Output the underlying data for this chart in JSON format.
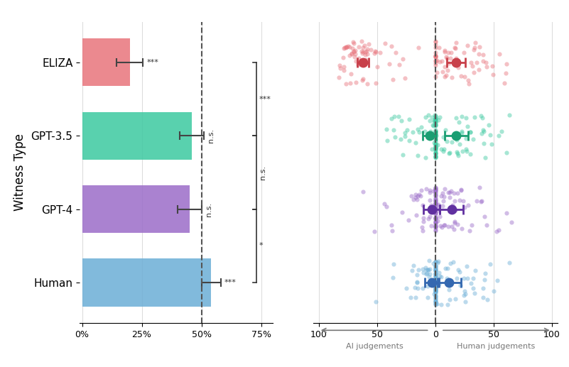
{
  "categories": [
    "ELIZA",
    "GPT-3.5",
    "GPT-4",
    "Human"
  ],
  "bar_values": [
    0.2,
    0.46,
    0.45,
    0.54
  ],
  "bar_colors": [
    "#E8747C",
    "#3CC9A0",
    "#9B6CC8",
    "#6BAED6"
  ],
  "bar_error": [
    0.055,
    0.05,
    0.05,
    0.04
  ],
  "bar_significance": [
    "***",
    "n.s.",
    "n.s.",
    "***"
  ],
  "between_significance": [
    {
      "rows": [
        0,
        1
      ],
      "label": "***"
    },
    {
      "rows": [
        1,
        2
      ],
      "label": "n.s."
    },
    {
      "rows": [
        2,
        3
      ],
      "label": "*"
    }
  ],
  "ai_means": [
    62,
    5,
    3,
    3
  ],
  "ai_errors": [
    5,
    6,
    7,
    6
  ],
  "human_means": [
    18,
    18,
    14,
    12
  ],
  "human_errors": [
    8,
    10,
    10,
    10
  ],
  "dot_colors_dark": [
    "#C8404A",
    "#1A9E72",
    "#6030A0",
    "#3468B0"
  ],
  "dot_colors_light": [
    "#E8747C",
    "#3CC9A0",
    "#9B6CC8",
    "#6BAED6"
  ],
  "background_color": "#FFFFFF",
  "ylabel": "Witness Type",
  "grid_color": "#DDDDDD"
}
